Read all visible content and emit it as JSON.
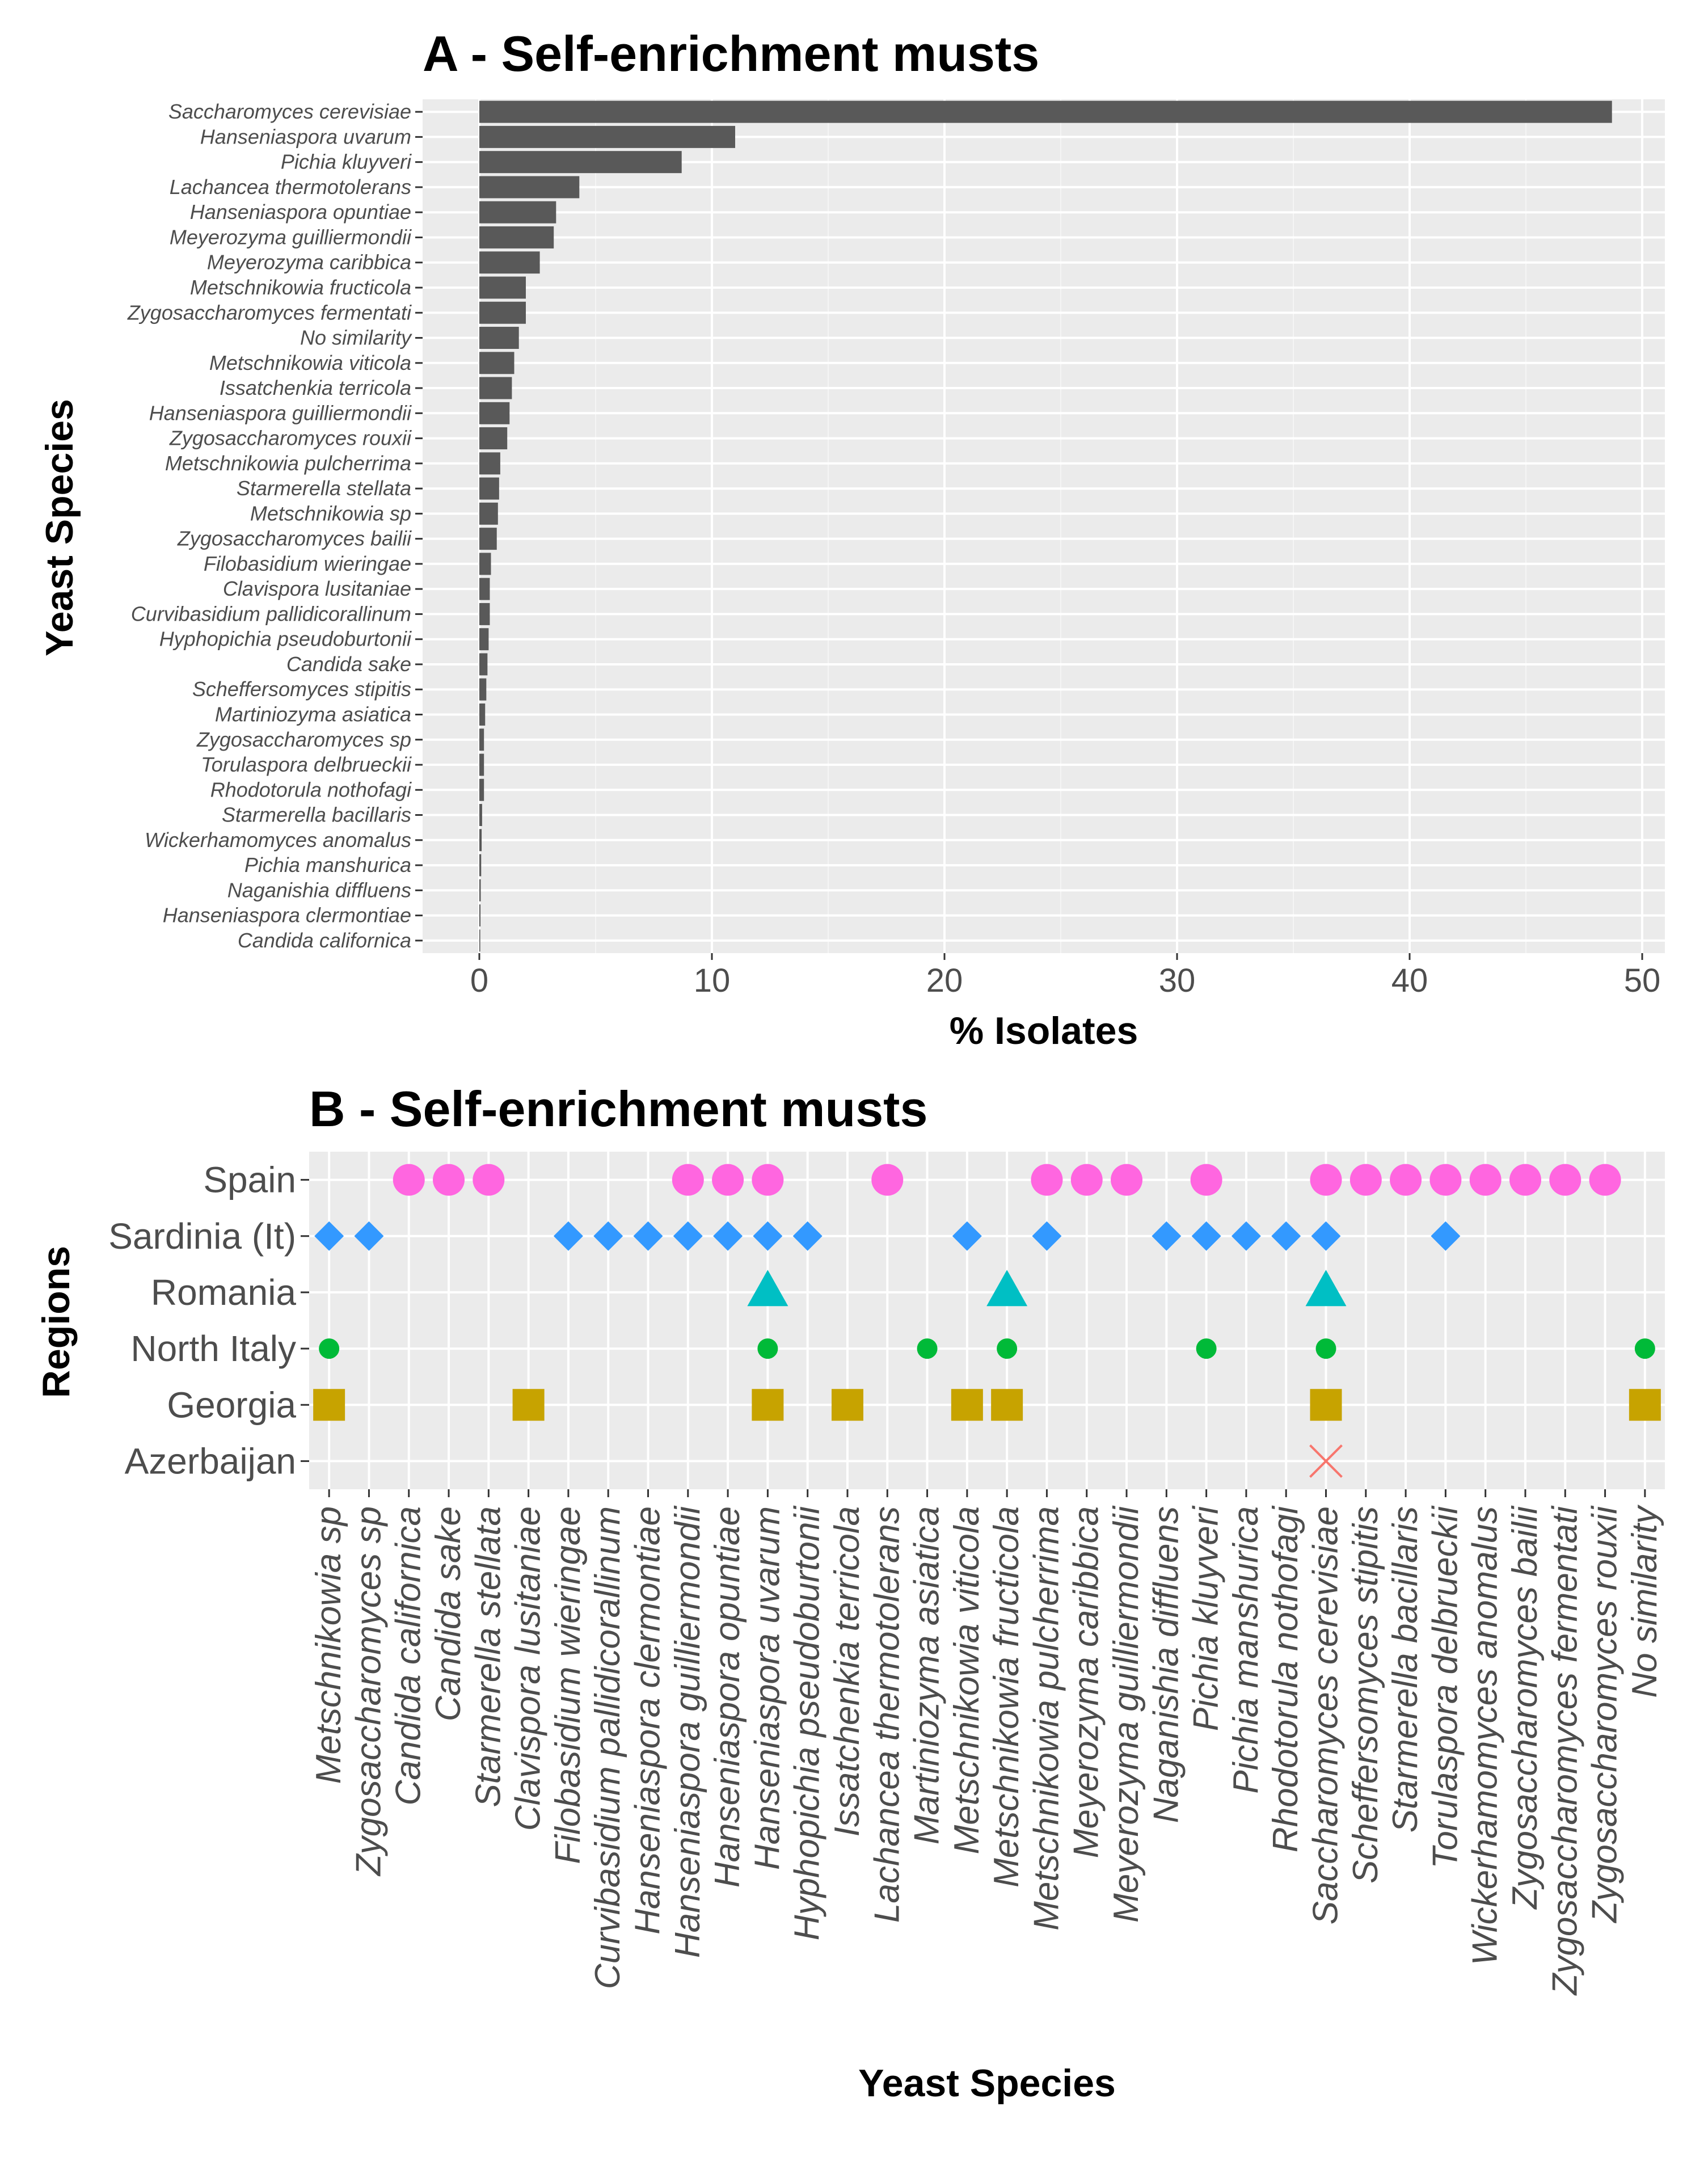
{
  "chart_data": [
    {
      "type": "bar",
      "orientation": "horizontal",
      "title": "A - Self-enrichment musts",
      "xlabel": "% Isolates",
      "ylabel": "Yeast Species",
      "xlim": [
        0,
        51
      ],
      "xticks": [
        0,
        10,
        20,
        30,
        40,
        50
      ],
      "grid": true,
      "bar_color": "#595959",
      "panel_color": "#ebebeb",
      "categories": [
        "Saccharomyces cerevisiae",
        "Hanseniaspora uvarum",
        "Pichia kluyveri",
        "Lachancea thermotolerans",
        "Hanseniaspora opuntiae",
        "Meyerozyma guilliermondii",
        "Meyerozyma caribbica",
        "Metschnikowia fructicola",
        "Zygosaccharomyces fermentati",
        "No similarity",
        "Metschnikowia viticola",
        "Issatchenkia terricola",
        "Hanseniaspora guilliermondii",
        "Zygosaccharomyces rouxii",
        "Metschnikowia pulcherrima",
        "Starmerella stellata",
        "Metschnikowia sp",
        "Zygosaccharomyces bailii",
        "Filobasidium wieringae",
        "Clavispora lusitaniae",
        "Curvibasidium pallidicorallinum",
        "Hyphopichia pseudoburtonii",
        "Candida sake",
        "Scheffersomyces stipitis",
        "Martiniozyma asiatica",
        "Zygosaccharomyces sp",
        "Torulaspora delbrueckii",
        "Rhodotorula nothofagi",
        "Starmerella bacillaris",
        "Wickerhamomyces anomalus",
        "Pichia manshurica",
        "Naganishia diffluens",
        "Hanseniaspora clermontiae",
        "Candida californica"
      ],
      "values": [
        48.7,
        11.0,
        8.7,
        4.3,
        3.3,
        3.2,
        2.6,
        2.0,
        2.0,
        1.7,
        1.5,
        1.4,
        1.3,
        1.2,
        0.9,
        0.85,
        0.8,
        0.75,
        0.5,
        0.45,
        0.45,
        0.4,
        0.35,
        0.3,
        0.25,
        0.2,
        0.2,
        0.2,
        0.12,
        0.1,
        0.08,
        0.06,
        0.05,
        0.04
      ]
    },
    {
      "type": "scatter",
      "title": "B - Self-enrichment musts",
      "xlabel": "Yeast Species",
      "ylabel": "Regions",
      "grid": true,
      "panel_color": "#ebebeb",
      "categories": [
        "Metschnikowia sp",
        "Zygosaccharomyces sp",
        "Candida californica",
        "Candida sake",
        "Starmerella stellata",
        "Clavispora lusitaniae",
        "Filobasidium wieringae",
        "Curvibasidium pallidicorallinum",
        "Hanseniaspora clermontiae",
        "Hanseniaspora guilliermondii",
        "Hanseniaspora opuntiae",
        "Hanseniaspora uvarum",
        "Hyphopichia pseudoburtonii",
        "Issatchenkia terricola",
        "Lachancea thermotolerans",
        "Martiniozyma asiatica",
        "Metschnikowia viticola",
        "Metschnikowia fructicola",
        "Metschnikowia pulcherrima",
        "Meyerozyma caribbica",
        "Meyerozyma guilliermondii",
        "Naganishia diffluens",
        "Pichia kluyveri",
        "Pichia manshurica",
        "Rhodotorula nothofagi",
        "Saccharomyces cerevisiae",
        "Scheffersomyces stipitis",
        "Starmerella bacillaris",
        "Torulaspora delbrueckii",
        "Wickerhamomyces anomalus",
        "Zygosaccharomyces bailii",
        "Zygosaccharomyces fermentati",
        "Zygosaccharomyces rouxii",
        "No similarity"
      ],
      "regions": [
        "Spain",
        "Sardinia (It)",
        "Romania",
        "North Italy",
        "Georgia",
        "Azerbaijan"
      ],
      "series": [
        {
          "name": "Spain",
          "shape": "circle",
          "color": "#ff66e0",
          "species": [
            2,
            3,
            4,
            9,
            10,
            11,
            14,
            18,
            19,
            20,
            22,
            25,
            26,
            27,
            28,
            29,
            30,
            31,
            32
          ]
        },
        {
          "name": "Sardinia (It)",
          "shape": "diamond",
          "color": "#3399ff",
          "species": [
            0,
            1,
            6,
            7,
            8,
            9,
            10,
            11,
            12,
            16,
            18,
            21,
            22,
            23,
            24,
            25,
            28
          ]
        },
        {
          "name": "Romania",
          "shape": "triangle",
          "color": "#00bfc4",
          "species": [
            11,
            17,
            25
          ]
        },
        {
          "name": "North Italy",
          "shape": "small-circle",
          "color": "#00ba38",
          "species": [
            0,
            11,
            15,
            17,
            22,
            25,
            33
          ]
        },
        {
          "name": "Georgia",
          "shape": "square",
          "color": "#c7a300",
          "species": [
            0,
            5,
            11,
            13,
            16,
            17,
            25,
            33
          ]
        },
        {
          "name": "Azerbaijan",
          "shape": "cross",
          "color": "#f8766d",
          "species": [
            25
          ]
        }
      ]
    }
  ]
}
